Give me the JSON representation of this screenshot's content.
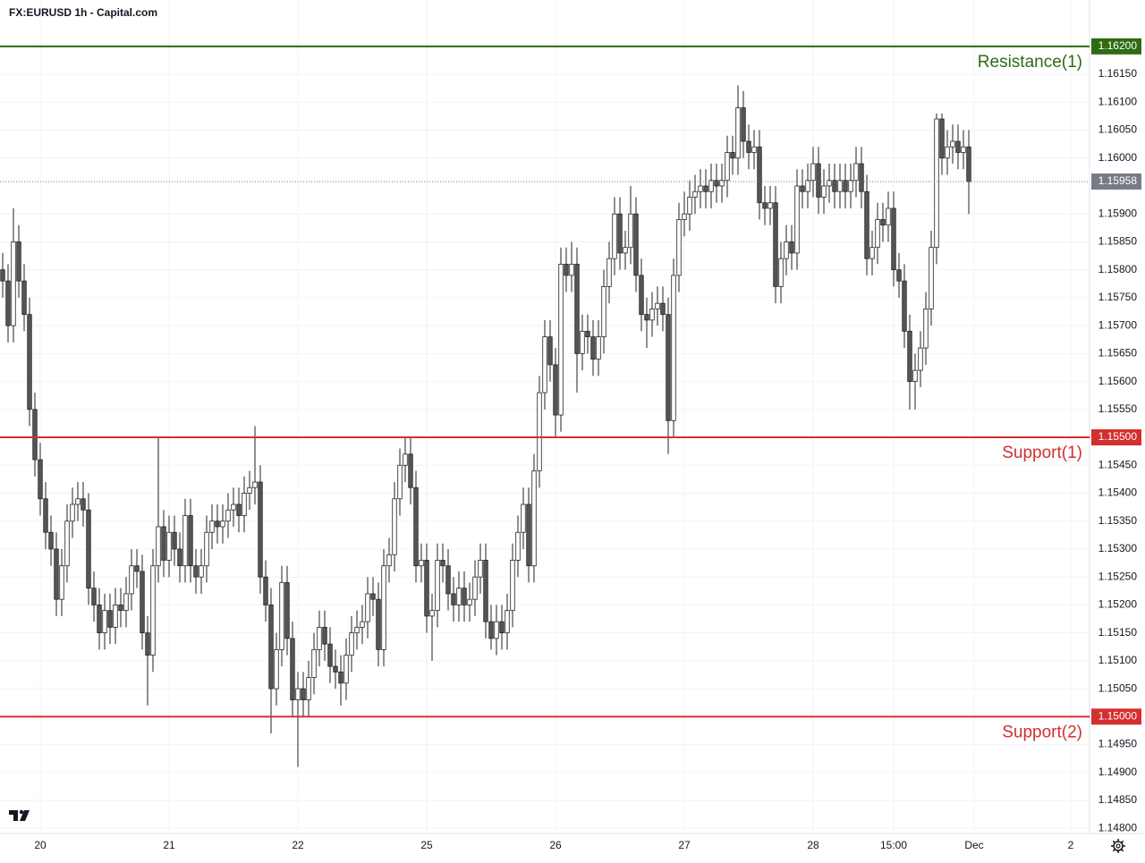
{
  "header": {
    "symbol_line": "FX:EURUSD 1h - Capital.com"
  },
  "chart_data": {
    "type": "candlestick",
    "up_color": "#ffffff",
    "down_color": "#555555",
    "wick_color": "#222222",
    "grid": true,
    "open": [
      1.158,
      1.1578,
      1.157,
      1.1585,
      1.1578,
      1.1572,
      1.1555,
      1.1546,
      1.1539,
      1.1533,
      1.153,
      1.1521,
      1.1527,
      1.1535,
      1.1538,
      1.1539,
      1.1537,
      1.1523,
      1.152,
      1.1515,
      1.1519,
      1.1516,
      1.152,
      1.1519,
      1.1522,
      1.1527,
      1.1526,
      1.1515,
      1.1511,
      1.1527,
      1.1534,
      1.1528,
      1.1533,
      1.153,
      1.1527,
      1.1536,
      1.1527,
      1.1525,
      1.1527,
      1.1533,
      1.1535,
      1.1534,
      1.1535,
      1.1537,
      1.1538,
      1.1536,
      1.154,
      1.1541,
      1.1542,
      1.1525,
      1.152,
      1.1505,
      1.1512,
      1.1524,
      1.1514,
      1.1503,
      1.1505,
      1.1503,
      1.1507,
      1.1512,
      1.1516,
      1.1513,
      1.1509,
      1.1508,
      1.1506,
      1.1511,
      1.1515,
      1.1516,
      1.1517,
      1.1522,
      1.1521,
      1.1512,
      1.1527,
      1.1529,
      1.1539,
      1.1545,
      1.1547,
      1.1541,
      1.1527,
      1.1528,
      1.1518,
      1.1519,
      1.1528,
      1.1527,
      1.1522,
      1.152,
      1.1523,
      1.152,
      1.1521,
      1.1525,
      1.1528,
      1.1517,
      1.1514,
      1.1517,
      1.1515,
      1.1519,
      1.1528,
      1.1533,
      1.1538,
      1.1527,
      1.1544,
      1.1558,
      1.1568,
      1.1563,
      1.1554,
      1.1581,
      1.1579,
      1.1581,
      1.1565,
      1.1569,
      1.1568,
      1.1564,
      1.1568,
      1.1577,
      1.1582,
      1.159,
      1.1583,
      1.1584,
      1.159,
      1.1579,
      1.1572,
      1.1571,
      1.1573,
      1.1574,
      1.1572,
      1.1553,
      1.1579,
      1.1589,
      1.159,
      1.1593,
      1.1594,
      1.1595,
      1.1594,
      1.1596,
      1.1595,
      1.1596,
      1.1601,
      1.16,
      1.1609,
      1.1603,
      1.1601,
      1.1602,
      1.1592,
      1.1591,
      1.1592,
      1.1577,
      1.1582,
      1.1585,
      1.1583,
      1.1595,
      1.1594,
      1.1596,
      1.1599,
      1.1593,
      1.1595,
      1.1596,
      1.1594,
      1.1596,
      1.1594,
      1.1596,
      1.1599,
      1.1594,
      1.1582,
      1.1584,
      1.1589,
      1.1588,
      1.1591,
      1.158,
      1.1578,
      1.1569,
      1.156,
      1.1562,
      1.1566,
      1.1573,
      1.1584,
      1.1607,
      1.16,
      1.1602,
      1.1603,
      1.1601,
      1.1602
    ],
    "high": [
      1.1583,
      1.1581,
      1.1591,
      1.1588,
      1.1581,
      1.1575,
      1.1558,
      1.1549,
      1.1542,
      1.1536,
      1.1533,
      1.153,
      1.1538,
      1.1541,
      1.1542,
      1.1542,
      1.154,
      1.1526,
      1.1523,
      1.1522,
      1.1522,
      1.1523,
      1.1523,
      1.1525,
      1.153,
      1.153,
      1.1529,
      1.1518,
      1.153,
      1.155,
      1.1537,
      1.1536,
      1.1536,
      1.1533,
      1.1539,
      1.1539,
      1.153,
      1.153,
      1.1536,
      1.1538,
      1.1538,
      1.1538,
      1.154,
      1.1541,
      1.1541,
      1.1543,
      1.1544,
      1.1552,
      1.1545,
      1.1528,
      1.1523,
      1.1515,
      1.1527,
      1.1527,
      1.1517,
      1.1508,
      1.1508,
      1.151,
      1.1515,
      1.1519,
      1.1519,
      1.1516,
      1.1512,
      1.1511,
      1.1514,
      1.1518,
      1.1519,
      1.152,
      1.1525,
      1.1525,
      1.1524,
      1.153,
      1.1532,
      1.1542,
      1.1548,
      1.155,
      1.155,
      1.1544,
      1.1531,
      1.1531,
      1.1522,
      1.1531,
      1.1531,
      1.153,
      1.1525,
      1.1526,
      1.1526,
      1.1524,
      1.1528,
      1.1531,
      1.1531,
      1.152,
      1.152,
      1.152,
      1.1522,
      1.1531,
      1.1536,
      1.1541,
      1.1541,
      1.1547,
      1.1561,
      1.1571,
      1.1571,
      1.1566,
      1.1584,
      1.1584,
      1.1585,
      1.1584,
      1.1572,
      1.1572,
      1.1571,
      1.1571,
      1.158,
      1.1585,
      1.1593,
      1.1593,
      1.1587,
      1.1595,
      1.1593,
      1.1582,
      1.1575,
      1.1576,
      1.1577,
      1.1577,
      1.1575,
      1.1582,
      1.1592,
      1.1594,
      1.1596,
      1.1597,
      1.1598,
      1.1598,
      1.1599,
      1.1599,
      1.1599,
      1.1604,
      1.1604,
      1.1613,
      1.1612,
      1.1606,
      1.1605,
      1.1605,
      1.1595,
      1.1595,
      1.1595,
      1.1585,
      1.1588,
      1.1588,
      1.1598,
      1.1598,
      1.1599,
      1.1602,
      1.1602,
      1.1598,
      1.1599,
      1.1599,
      1.1599,
      1.1599,
      1.1599,
      1.1602,
      1.1602,
      1.1597,
      1.1587,
      1.1592,
      1.1592,
      1.1594,
      1.1594,
      1.1583,
      1.1581,
      1.1572,
      1.1565,
      1.1569,
      1.1576,
      1.1587,
      1.1608,
      1.1608,
      1.1605,
      1.1606,
      1.1606,
      1.1605,
      1.1605
    ],
    "low": [
      1.1575,
      1.1567,
      1.1567,
      1.1575,
      1.1569,
      1.1552,
      1.1543,
      1.1536,
      1.153,
      1.1527,
      1.1518,
      1.1518,
      1.1524,
      1.1532,
      1.1535,
      1.1534,
      1.152,
      1.1517,
      1.1512,
      1.1512,
      1.1513,
      1.1513,
      1.1516,
      1.1516,
      1.1519,
      1.1523,
      1.1512,
      1.1502,
      1.1508,
      1.1524,
      1.1525,
      1.1525,
      1.1527,
      1.1524,
      1.1524,
      1.1524,
      1.1522,
      1.1522,
      1.1524,
      1.153,
      1.1531,
      1.1531,
      1.1532,
      1.1534,
      1.1533,
      1.1533,
      1.1537,
      1.1538,
      1.1522,
      1.1517,
      1.1497,
      1.1502,
      1.1509,
      1.1511,
      1.15,
      1.1491,
      1.15,
      1.15,
      1.1504,
      1.1509,
      1.151,
      1.1506,
      1.1505,
      1.1502,
      1.1503,
      1.1508,
      1.1512,
      1.1513,
      1.1514,
      1.1518,
      1.1509,
      1.1509,
      1.1524,
      1.1526,
      1.1536,
      1.1542,
      1.1538,
      1.1524,
      1.1524,
      1.1515,
      1.151,
      1.1516,
      1.1524,
      1.1519,
      1.1517,
      1.1517,
      1.1517,
      1.1517,
      1.1518,
      1.1522,
      1.1514,
      1.1512,
      1.1511,
      1.1512,
      1.1512,
      1.1516,
      1.1525,
      1.153,
      1.1524,
      1.1524,
      1.1541,
      1.1555,
      1.156,
      1.155,
      1.1551,
      1.1576,
      1.1576,
      1.1558,
      1.1562,
      1.1565,
      1.1561,
      1.1561,
      1.1565,
      1.1574,
      1.1579,
      1.158,
      1.158,
      1.1581,
      1.1576,
      1.1569,
      1.1566,
      1.1568,
      1.157,
      1.1569,
      1.1547,
      1.155,
      1.1576,
      1.1586,
      1.1587,
      1.159,
      1.1591,
      1.1591,
      1.1591,
      1.1592,
      1.1592,
      1.1593,
      1.1597,
      1.1597,
      1.16,
      1.1598,
      1.1598,
      1.1589,
      1.1588,
      1.1588,
      1.1574,
      1.1574,
      1.1579,
      1.158,
      1.158,
      1.1591,
      1.1591,
      1.1593,
      1.159,
      1.159,
      1.1592,
      1.1591,
      1.1591,
      1.1591,
      1.1591,
      1.1593,
      1.1591,
      1.1579,
      1.1579,
      1.1581,
      1.1585,
      1.1585,
      1.1577,
      1.1575,
      1.1566,
      1.1555,
      1.1555,
      1.1559,
      1.1563,
      1.157,
      1.1581,
      1.1597,
      1.1597,
      1.1599,
      1.1598,
      1.1598,
      1.159
    ],
    "close": [
      1.1578,
      1.157,
      1.1585,
      1.1578,
      1.1572,
      1.1555,
      1.1546,
      1.1539,
      1.1533,
      1.153,
      1.1521,
      1.1527,
      1.1535,
      1.1538,
      1.1539,
      1.1537,
      1.1523,
      1.152,
      1.1515,
      1.1519,
      1.1516,
      1.152,
      1.1519,
      1.1522,
      1.1527,
      1.1526,
      1.1515,
      1.1511,
      1.1527,
      1.1534,
      1.1528,
      1.1533,
      1.153,
      1.1527,
      1.1536,
      1.1527,
      1.1525,
      1.1527,
      1.1533,
      1.1535,
      1.1534,
      1.1535,
      1.1537,
      1.1538,
      1.1536,
      1.154,
      1.1541,
      1.1542,
      1.1525,
      1.152,
      1.1505,
      1.1512,
      1.1524,
      1.1514,
      1.1503,
      1.1505,
      1.1503,
      1.1507,
      1.1512,
      1.1516,
      1.1513,
      1.1509,
      1.1508,
      1.1506,
      1.1511,
      1.1515,
      1.1516,
      1.1517,
      1.1522,
      1.1521,
      1.1512,
      1.1527,
      1.1529,
      1.1539,
      1.1545,
      1.1547,
      1.1541,
      1.1527,
      1.1528,
      1.1518,
      1.1519,
      1.1528,
      1.1527,
      1.1522,
      1.152,
      1.1523,
      1.152,
      1.1521,
      1.1525,
      1.1528,
      1.1517,
      1.1514,
      1.1517,
      1.1515,
      1.1519,
      1.1528,
      1.1533,
      1.1538,
      1.1527,
      1.1544,
      1.1558,
      1.1568,
      1.1563,
      1.1554,
      1.1581,
      1.1579,
      1.1581,
      1.1565,
      1.1569,
      1.1568,
      1.1564,
      1.1568,
      1.1577,
      1.1582,
      1.159,
      1.1583,
      1.1584,
      1.159,
      1.1579,
      1.1572,
      1.1571,
      1.1573,
      1.1574,
      1.1572,
      1.1553,
      1.1579,
      1.1589,
      1.159,
      1.1593,
      1.1594,
      1.1595,
      1.1594,
      1.1596,
      1.1595,
      1.1596,
      1.1601,
      1.16,
      1.1609,
      1.1603,
      1.1601,
      1.1602,
      1.1592,
      1.1591,
      1.1592,
      1.1577,
      1.1582,
      1.1585,
      1.1583,
      1.1595,
      1.1594,
      1.1596,
      1.1599,
      1.1593,
      1.1595,
      1.1596,
      1.1594,
      1.1596,
      1.1594,
      1.1596,
      1.1599,
      1.1594,
      1.1582,
      1.1584,
      1.1589,
      1.1588,
      1.1591,
      1.158,
      1.1578,
      1.1569,
      1.156,
      1.1562,
      1.1566,
      1.1573,
      1.1584,
      1.1607,
      1.16,
      1.1602,
      1.1603,
      1.1601,
      1.1602,
      1.15958
    ],
    "xlim": [
      -0.5,
      202.5
    ],
    "xticks": [
      {
        "value": 7,
        "label": "20"
      },
      {
        "value": 31,
        "label": "21"
      },
      {
        "value": 55,
        "label": "22"
      },
      {
        "value": 79,
        "label": "25"
      },
      {
        "value": 103,
        "label": "26"
      },
      {
        "value": 127,
        "label": "27"
      },
      {
        "value": 151,
        "label": "28"
      },
      {
        "value": 166,
        "label": "15:00"
      },
      {
        "value": 181,
        "label": "Dec"
      },
      {
        "value": 199,
        "label": "2"
      }
    ],
    "ylim": [
      1.14794,
      1.16283
    ],
    "yticks": [
      {
        "value": 1.148,
        "label": "1.14800"
      },
      {
        "value": 1.1485,
        "label": "1.14850"
      },
      {
        "value": 1.149,
        "label": "1.14900"
      },
      {
        "value": 1.1495,
        "label": "1.14950"
      },
      {
        "value": 1.1505,
        "label": "1.15050"
      },
      {
        "value": 1.151,
        "label": "1.15100"
      },
      {
        "value": 1.1515,
        "label": "1.15150"
      },
      {
        "value": 1.152,
        "label": "1.15200"
      },
      {
        "value": 1.1525,
        "label": "1.15250"
      },
      {
        "value": 1.153,
        "label": "1.15300"
      },
      {
        "value": 1.1535,
        "label": "1.15350"
      },
      {
        "value": 1.154,
        "label": "1.15400"
      },
      {
        "value": 1.1545,
        "label": "1.15450"
      },
      {
        "value": 1.1555,
        "label": "1.15550"
      },
      {
        "value": 1.156,
        "label": "1.15600"
      },
      {
        "value": 1.1565,
        "label": "1.15650"
      },
      {
        "value": 1.157,
        "label": "1.15700"
      },
      {
        "value": 1.1575,
        "label": "1.15750"
      },
      {
        "value": 1.158,
        "label": "1.15800"
      },
      {
        "value": 1.1585,
        "label": "1.15850"
      },
      {
        "value": 1.159,
        "label": "1.15900"
      },
      {
        "value": 1.16,
        "label": "1.16000"
      },
      {
        "value": 1.1605,
        "label": "1.16050"
      },
      {
        "value": 1.161,
        "label": "1.16100"
      },
      {
        "value": 1.1615,
        "label": "1.16150"
      }
    ],
    "levels": [
      {
        "name": "Resistance(1)",
        "price": {
          "value": 1.162,
          "label": "1.16200"
        },
        "color": "#2e6b12"
      },
      {
        "name": "Support(1)",
        "price": {
          "value": 1.155,
          "label": "1.15500"
        },
        "color": "#d32f2f"
      },
      {
        "name": "Support(2)",
        "price": {
          "value": 1.15,
          "label": "1.15000"
        },
        "color": "#d32f2f"
      }
    ],
    "last_price_color": "#787b86"
  }
}
